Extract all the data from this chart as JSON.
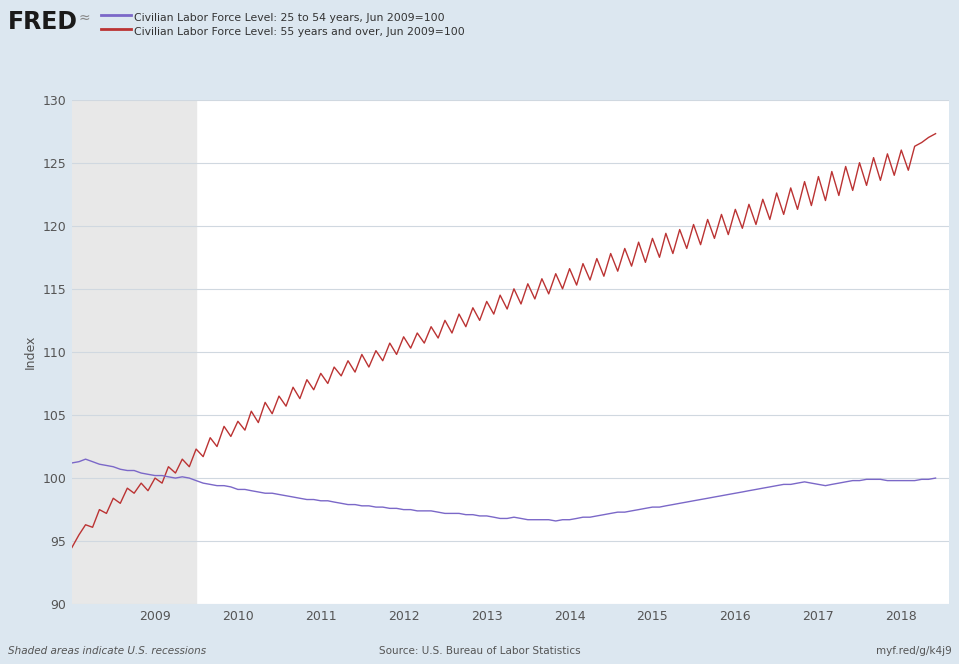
{
  "legend_line1": "Civilian Labor Force Level: 25 to 54 years, Jun 2009=100",
  "legend_line2": "Civilian Labor Force Level: 55 years and over, Jun 2009=100",
  "ylabel": "Index",
  "source_text": "Source: U.S. Bureau of Labor Statistics",
  "shaded_text": "Shaded areas indicate U.S. recessions",
  "url_text": "myf.red/g/k4j9",
  "background_color": "#dce7f0",
  "plot_bg_color": "#ffffff",
  "recession_color": "#e8e8e8",
  "line_color_prime": "#7b68c8",
  "line_color_old": "#bb3333",
  "ylim": [
    90,
    130
  ],
  "yticks": [
    90,
    95,
    100,
    105,
    110,
    115,
    120,
    125,
    130
  ],
  "xtick_years": [
    2009,
    2010,
    2011,
    2012,
    2013,
    2014,
    2015,
    2016,
    2017,
    2018
  ],
  "prime_data": [
    101.2,
    101.3,
    101.5,
    101.3,
    101.1,
    101.0,
    100.9,
    100.7,
    100.6,
    100.6,
    100.4,
    100.3,
    100.2,
    100.2,
    100.1,
    100.0,
    100.1,
    100.0,
    99.8,
    99.6,
    99.5,
    99.4,
    99.4,
    99.3,
    99.1,
    99.1,
    99.0,
    98.9,
    98.8,
    98.8,
    98.7,
    98.6,
    98.5,
    98.4,
    98.3,
    98.3,
    98.2,
    98.2,
    98.1,
    98.0,
    97.9,
    97.9,
    97.8,
    97.8,
    97.7,
    97.7,
    97.6,
    97.6,
    97.5,
    97.5,
    97.4,
    97.4,
    97.4,
    97.3,
    97.2,
    97.2,
    97.2,
    97.1,
    97.1,
    97.0,
    97.0,
    96.9,
    96.8,
    96.8,
    96.9,
    96.8,
    96.7,
    96.7,
    96.7,
    96.7,
    96.6,
    96.7,
    96.7,
    96.8,
    96.9,
    96.9,
    97.0,
    97.1,
    97.2,
    97.3,
    97.3,
    97.4,
    97.5,
    97.6,
    97.7,
    97.7,
    97.8,
    97.9,
    98.0,
    98.1,
    98.2,
    98.3,
    98.4,
    98.5,
    98.6,
    98.7,
    98.8,
    98.9,
    99.0,
    99.1,
    99.2,
    99.3,
    99.4,
    99.5,
    99.5,
    99.6,
    99.7,
    99.6,
    99.5,
    99.4,
    99.5,
    99.6,
    99.7,
    99.8,
    99.8,
    99.9,
    99.9,
    99.9,
    99.8,
    99.8,
    99.8,
    99.8,
    99.8,
    99.9,
    99.9,
    100.0,
    99.9,
    99.8
  ],
  "old_data": [
    94.5,
    95.5,
    96.3,
    96.1,
    97.5,
    97.2,
    98.4,
    98.0,
    99.2,
    98.8,
    99.6,
    99.0,
    100.0,
    99.6,
    100.9,
    100.4,
    101.5,
    100.9,
    102.3,
    101.7,
    103.2,
    102.5,
    104.1,
    103.3,
    104.5,
    103.8,
    105.3,
    104.4,
    106.0,
    105.1,
    106.5,
    105.7,
    107.2,
    106.3,
    107.8,
    107.0,
    108.3,
    107.5,
    108.8,
    108.1,
    109.3,
    108.4,
    109.8,
    108.8,
    110.1,
    109.3,
    110.7,
    109.8,
    111.2,
    110.3,
    111.5,
    110.7,
    112.0,
    111.1,
    112.5,
    111.5,
    113.0,
    112.0,
    113.5,
    112.5,
    114.0,
    113.0,
    114.5,
    113.4,
    115.0,
    113.8,
    115.4,
    114.2,
    115.8,
    114.6,
    116.2,
    115.0,
    116.6,
    115.3,
    117.0,
    115.7,
    117.4,
    116.0,
    117.8,
    116.4,
    118.2,
    116.8,
    118.7,
    117.1,
    119.0,
    117.5,
    119.4,
    117.8,
    119.7,
    118.2,
    120.1,
    118.5,
    120.5,
    119.0,
    120.9,
    119.3,
    121.3,
    119.8,
    121.7,
    120.1,
    122.1,
    120.5,
    122.6,
    120.9,
    123.0,
    121.3,
    123.5,
    121.6,
    123.9,
    122.0,
    124.3,
    122.4,
    124.7,
    122.8,
    125.0,
    123.2,
    125.4,
    123.6,
    125.7,
    124.0,
    126.0,
    124.4,
    126.3,
    126.6,
    127.0,
    127.3,
    127.6,
    128.0
  ]
}
